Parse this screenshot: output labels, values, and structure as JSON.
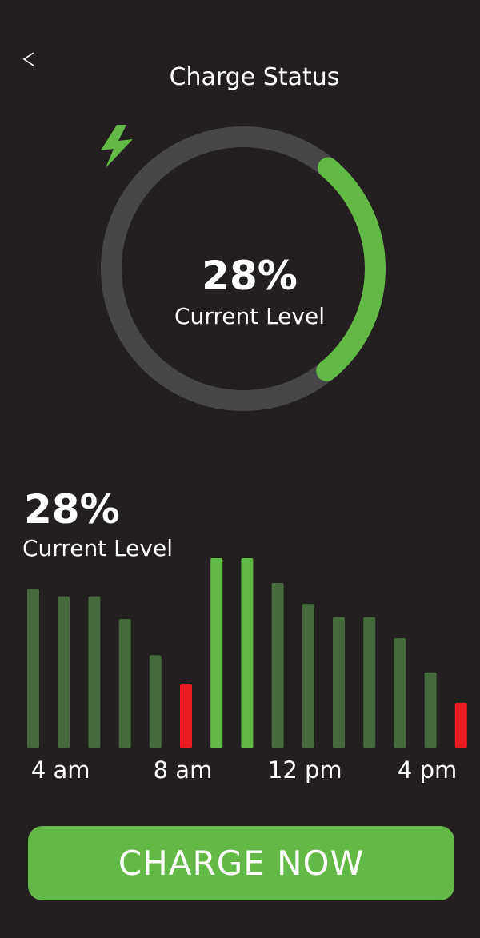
{
  "header": {
    "title": "Charge Status",
    "back_icon": "chevron-left-icon"
  },
  "gauge": {
    "level_percent": 28,
    "value_label": "28%",
    "caption": "Current Level",
    "icon": "lightning-bolt-icon",
    "colors": {
      "track": "#47474a",
      "fill": "#62b946",
      "bolt": "#62b946"
    }
  },
  "summary": {
    "value_label": "28%",
    "caption": "Current Level"
  },
  "chart_data": {
    "type": "bar",
    "title": "",
    "xlabel": "",
    "ylabel": "",
    "ylim": [
      0,
      100
    ],
    "grid": false,
    "tick_labels": [
      {
        "label": "4 am",
        "index": 1
      },
      {
        "label": "8 am",
        "index": 5
      },
      {
        "label": "12 pm",
        "index": 9
      },
      {
        "label": "4 pm",
        "index": 13
      }
    ],
    "bars": [
      {
        "value": 84,
        "status": "normal"
      },
      {
        "value": 80,
        "status": "normal"
      },
      {
        "value": 80,
        "status": "normal"
      },
      {
        "value": 68,
        "status": "normal"
      },
      {
        "value": 49,
        "status": "normal"
      },
      {
        "value": 34,
        "status": "low"
      },
      {
        "value": 100,
        "status": "high"
      },
      {
        "value": 100,
        "status": "high"
      },
      {
        "value": 87,
        "status": "normal"
      },
      {
        "value": 76,
        "status": "normal"
      },
      {
        "value": 69,
        "status": "normal"
      },
      {
        "value": 69,
        "status": "normal"
      },
      {
        "value": 58,
        "status": "normal"
      },
      {
        "value": 40,
        "status": "normal"
      },
      {
        "value": 24,
        "status": "low"
      }
    ],
    "colors": {
      "normal": "#456a3c",
      "high": "#62b946",
      "low": "#ec1c24"
    }
  },
  "actions": {
    "charge_label": "CHARGE NOW",
    "colors": {
      "background": "#62b946"
    }
  }
}
